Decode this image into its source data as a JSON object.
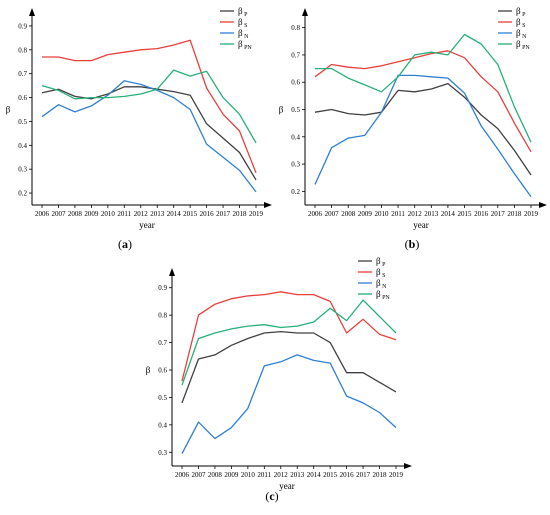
{
  "colors": {
    "beta_P": "#404040",
    "beta_S": "#e8403c",
    "beta_N": "#2f7fd6",
    "beta_PN": "#27b07a"
  },
  "chart_data": [
    {
      "type": "line",
      "panel_label": "a",
      "xlabel": "year",
      "ylabel": "β",
      "x": [
        2006,
        2007,
        2008,
        2009,
        2010,
        2011,
        2012,
        2013,
        2014,
        2015,
        2016,
        2017,
        2018,
        2019
      ],
      "x_tick_labels": [
        "2006",
        "2007",
        "2008",
        "2009",
        "2010",
        "2011",
        "2012",
        "2013",
        "2014",
        "2015",
        "2016",
        "2017",
        "2018",
        "2019"
      ],
      "ylim": [
        0.15,
        0.95
      ],
      "y_ticks": [
        0.2,
        0.3,
        0.4,
        0.5,
        0.6,
        0.7,
        0.8,
        0.9
      ],
      "y_tick_labels": [
        "0.2",
        "0.3",
        "0.4",
        "0.5",
        "0.6",
        "0.7",
        "0.8",
        "0.9"
      ],
      "legend_position": "top-right",
      "grid": false,
      "series": [
        {
          "name": "β",
          "subscript": "P",
          "color_key": "beta_P",
          "values": [
            0.62,
            0.635,
            0.605,
            0.595,
            0.615,
            0.645,
            0.645,
            0.635,
            0.625,
            0.61,
            0.49,
            0.43,
            0.37,
            0.255
          ]
        },
        {
          "name": "β",
          "subscript": "S",
          "color_key": "beta_S",
          "values": [
            0.77,
            0.77,
            0.755,
            0.755,
            0.78,
            0.79,
            0.8,
            0.805,
            0.82,
            0.84,
            0.64,
            0.53,
            0.46,
            0.285
          ]
        },
        {
          "name": "β",
          "subscript": "N",
          "color_key": "beta_N",
          "values": [
            0.52,
            0.57,
            0.54,
            0.565,
            0.61,
            0.67,
            0.655,
            0.63,
            0.6,
            0.55,
            0.405,
            0.35,
            0.295,
            0.205
          ]
        },
        {
          "name": "β",
          "subscript": "PN",
          "color_key": "beta_PN",
          "values": [
            0.65,
            0.63,
            0.595,
            0.6,
            0.6,
            0.605,
            0.615,
            0.635,
            0.715,
            0.69,
            0.71,
            0.6,
            0.53,
            0.41
          ]
        }
      ]
    },
    {
      "type": "line",
      "panel_label": "b",
      "xlabel": "year",
      "ylabel": "β",
      "x": [
        2006,
        2007,
        2008,
        2009,
        2010,
        2011,
        2012,
        2013,
        2014,
        2015,
        2016,
        2017,
        2018,
        2019
      ],
      "x_tick_labels": [
        "2006",
        "2007",
        "2008",
        "2009",
        "2010",
        "2011",
        "2012",
        "2013",
        "2014",
        "2015",
        "2016",
        "2017",
        "2018",
        "2019"
      ],
      "ylim": [
        0.15,
        0.85
      ],
      "y_ticks": [
        0.2,
        0.3,
        0.4,
        0.5,
        0.6,
        0.7,
        0.8
      ],
      "y_tick_labels": [
        "0.2",
        "0.3",
        "0.4",
        "0.5",
        "0.6",
        "0.7",
        "0.8"
      ],
      "legend_position": "top-right",
      "grid": false,
      "series": [
        {
          "name": "β",
          "subscript": "P",
          "color_key": "beta_P",
          "values": [
            0.49,
            0.5,
            0.485,
            0.48,
            0.49,
            0.57,
            0.565,
            0.575,
            0.595,
            0.545,
            0.48,
            0.43,
            0.35,
            0.26
          ]
        },
        {
          "name": "β",
          "subscript": "S",
          "color_key": "beta_S",
          "values": [
            0.62,
            0.665,
            0.655,
            0.65,
            0.66,
            0.675,
            0.69,
            0.705,
            0.715,
            0.69,
            0.62,
            0.565,
            0.45,
            0.345
          ]
        },
        {
          "name": "β",
          "subscript": "N",
          "color_key": "beta_N",
          "values": [
            0.225,
            0.36,
            0.395,
            0.405,
            0.49,
            0.625,
            0.625,
            0.62,
            0.615,
            0.56,
            0.44,
            0.355,
            0.265,
            0.18
          ]
        },
        {
          "name": "β",
          "subscript": "PN",
          "color_key": "beta_PN",
          "values": [
            0.65,
            0.65,
            0.615,
            0.59,
            0.565,
            0.62,
            0.7,
            0.71,
            0.7,
            0.775,
            0.74,
            0.665,
            0.51,
            0.38
          ]
        }
      ]
    },
    {
      "type": "line",
      "panel_label": "c",
      "xlabel": "year",
      "ylabel": "β",
      "x": [
        2006,
        2007,
        2008,
        2009,
        2010,
        2011,
        2012,
        2013,
        2014,
        2015,
        2016,
        2017,
        2018,
        2019
      ],
      "x_tick_labels": [
        "2006",
        "2007",
        "2008",
        "2009",
        "2010",
        "2011",
        "2012",
        "2013",
        "2014",
        "2015",
        "2016",
        "2017",
        "2018",
        "2019"
      ],
      "ylim": [
        0.25,
        0.95
      ],
      "y_ticks": [
        0.3,
        0.4,
        0.5,
        0.6,
        0.7,
        0.8,
        0.9
      ],
      "y_tick_labels": [
        "0.3",
        "0.4",
        "0.5",
        "0.6",
        "0.7",
        "0.8",
        "0.9"
      ],
      "legend_position": "top-right",
      "grid": false,
      "series": [
        {
          "name": "β",
          "subscript": "P",
          "color_key": "beta_P",
          "values": [
            0.48,
            0.64,
            0.655,
            0.69,
            0.715,
            0.735,
            0.74,
            0.735,
            0.735,
            0.7,
            0.59,
            0.59,
            0.555,
            0.52
          ]
        },
        {
          "name": "β",
          "subscript": "S",
          "color_key": "beta_S",
          "values": [
            0.56,
            0.8,
            0.84,
            0.86,
            0.87,
            0.875,
            0.885,
            0.875,
            0.875,
            0.85,
            0.735,
            0.785,
            0.73,
            0.71
          ]
        },
        {
          "name": "β",
          "subscript": "N",
          "color_key": "beta_N",
          "values": [
            0.295,
            0.41,
            0.35,
            0.39,
            0.46,
            0.615,
            0.63,
            0.655,
            0.635,
            0.625,
            0.505,
            0.48,
            0.445,
            0.39
          ]
        },
        {
          "name": "β",
          "subscript": "PN",
          "color_key": "beta_PN",
          "values": [
            0.545,
            0.715,
            0.735,
            0.75,
            0.76,
            0.765,
            0.755,
            0.76,
            0.775,
            0.825,
            0.78,
            0.855,
            0.795,
            0.735
          ]
        }
      ]
    }
  ]
}
